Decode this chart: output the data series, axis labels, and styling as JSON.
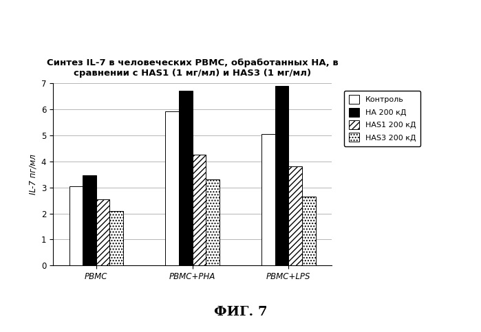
{
  "title": "Синтез IL-7 в человеческих PBMC, обработанных НА, в\nсравнении с HAS1 (1 мг/мл) и HAS3 (1 мг/мл)",
  "ylabel": "IL-7 пг/мл",
  "groups": [
    "PBMC",
    "PBMC+PHA",
    "PBMC+LPS"
  ],
  "series_labels": [
    "Контроль",
    "НА 200 кД",
    "HAS1 200 кД",
    "HAS3 200 кД"
  ],
  "values": [
    [
      3.05,
      5.9,
      5.05
    ],
    [
      3.45,
      6.7,
      6.9
    ],
    [
      2.55,
      4.25,
      3.8
    ],
    [
      2.1,
      3.3,
      2.65
    ]
  ],
  "ylim": [
    0,
    7
  ],
  "yticks": [
    0,
    1,
    2,
    3,
    4,
    5,
    6,
    7
  ],
  "fig_caption": "ФИГ. 7",
  "background_color": "#ffffff",
  "bar_colors": [
    "white",
    "black",
    "white",
    "white"
  ],
  "bar_hatches": [
    null,
    null,
    "////",
    "...."
  ],
  "bar_edgecolors": [
    "black",
    "black",
    "black",
    "black"
  ],
  "grid_color": "#aaaaaa",
  "title_fontsize": 9.5,
  "label_fontsize": 8.5,
  "tick_fontsize": 8.5,
  "caption_fontsize": 14,
  "legend_fontsize": 8
}
